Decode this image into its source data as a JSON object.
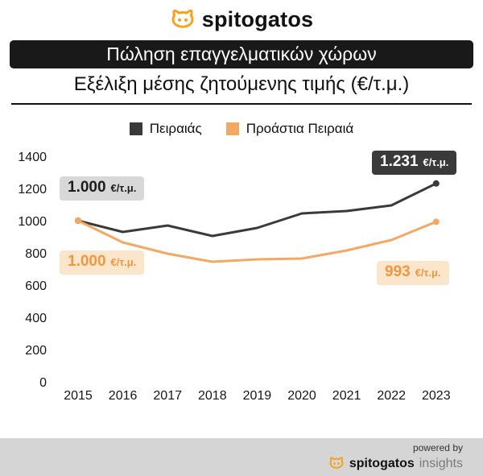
{
  "header": {
    "brand": "spitogatos"
  },
  "title_bar": {
    "text": "Πώληση επαγγελματικών χώρων"
  },
  "subtitle": "Εξέλιξη μέσης ζητούμενης τιμής (€/τ.μ.)",
  "legend": [
    {
      "label": "Πειραιάς",
      "color": "#3a3a3a"
    },
    {
      "label": "Προάστια Πειραιά",
      "color": "#f2a963"
    }
  ],
  "chart_data": {
    "type": "line",
    "title": "Εξέλιξη μέσης ζητούμενης τιμής (€/τ.μ.)",
    "x": [
      "2015",
      "2016",
      "2017",
      "2018",
      "2019",
      "2020",
      "2021",
      "2022",
      "2023"
    ],
    "series": [
      {
        "name": "Πειραιάς",
        "color": "#3a3a3a",
        "values": [
          1000,
          930,
          970,
          905,
          955,
          1045,
          1060,
          1095,
          1231
        ]
      },
      {
        "name": "Προάστια Πειραιά",
        "color": "#f2a963",
        "values": [
          1000,
          865,
          795,
          745,
          760,
          765,
          815,
          880,
          993
        ]
      }
    ],
    "ylim": [
      0,
      1400
    ],
    "yticks": [
      0,
      200,
      400,
      600,
      800,
      1000,
      1200,
      1400
    ],
    "grid": false,
    "legend_position": "top",
    "annotations": [
      {
        "value": "1.000",
        "unit": "€/τ.μ.",
        "series": "Πειραιάς",
        "point": "2015"
      },
      {
        "value": "1.231",
        "unit": "€/τ.μ.",
        "series": "Πειραιάς",
        "point": "2023"
      },
      {
        "value": "1.000",
        "unit": "€/τ.μ.",
        "series": "Προάστια Πειραιά",
        "point": "2015"
      },
      {
        "value": "993",
        "unit": "€/τ.μ.",
        "series": "Προάστια Πειραιά",
        "point": "2023"
      }
    ]
  },
  "footer": {
    "powered_by": "powered by",
    "brand": "spitogatos",
    "brand_suffix": "insights"
  },
  "colors": {
    "brand_orange": "#f7a11c",
    "series_dark": "#3a3a3a",
    "series_orange": "#f2a963",
    "annotation_gray_bg": "#d8d8d8",
    "annotation_dark_bg": "#3a3a3a",
    "annotation_orange_bg": "#fbe6cb",
    "annotation_orange_text": "#ef9743",
    "footer_bg": "#d5d5d5"
  }
}
